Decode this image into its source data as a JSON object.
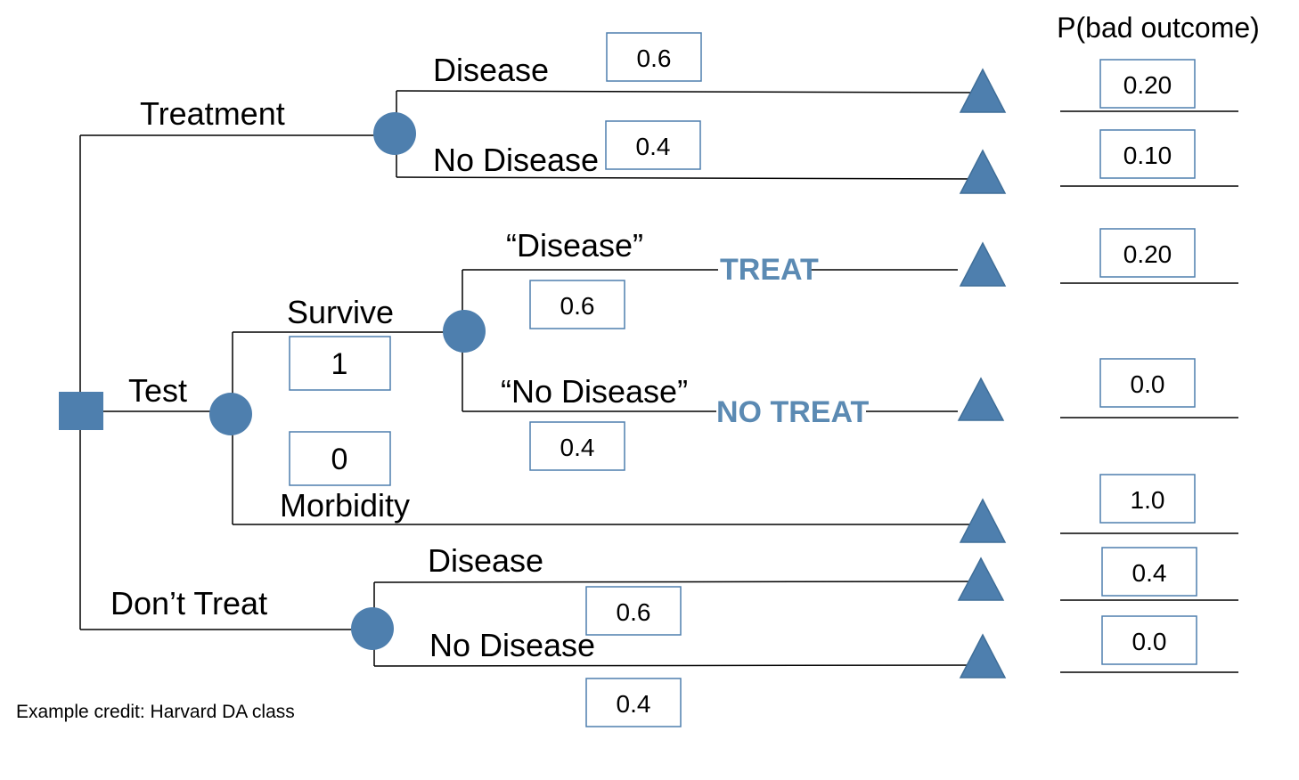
{
  "header": {
    "title": "P(bad outcome)"
  },
  "branches": {
    "treatment": "Treatment",
    "test": "Test",
    "dont_treat": "Don’t Treat"
  },
  "treatment": {
    "disease": "Disease",
    "disease_p": "0.6",
    "no_disease": "No Disease",
    "no_disease_p": "0.4"
  },
  "test": {
    "survive": "Survive",
    "survive_p": "1",
    "morbidity": "Morbidity",
    "morbidity_p": "0",
    "result_disease": "“Disease”",
    "result_disease_p": "0.6",
    "result_no_disease": "“No Disease”",
    "result_no_disease_p": "0.4",
    "treat_action": "TREAT",
    "no_treat_action": "NO TREAT"
  },
  "dont_treat": {
    "disease": "Disease",
    "disease_p": "0.6",
    "no_disease": "No Disease",
    "no_disease_p": "0.4"
  },
  "outcomes": [
    "0.20",
    "0.10",
    "0.20",
    "0.0",
    "1.0",
    "0.4",
    "0.0"
  ],
  "credit": "Example credit: Harvard DA class",
  "colors": {
    "node": "#4e7fae",
    "action_text": "#5b8ab3",
    "box_border": "#4e7fae"
  }
}
